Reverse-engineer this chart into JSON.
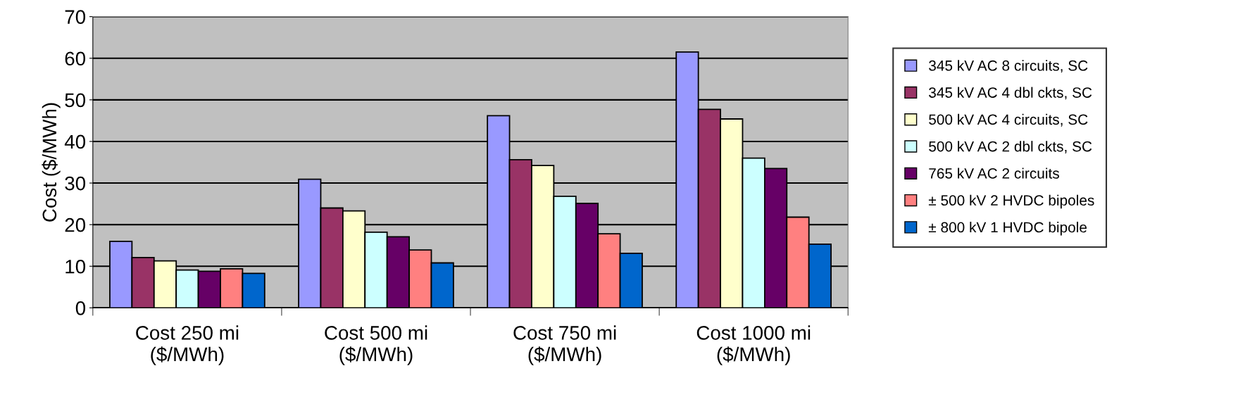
{
  "chart_data": {
    "type": "bar",
    "ylabel": "Cost ($/MWh)",
    "categories": [
      "Cost 250 mi\n($/MWh)",
      "Cost 500 mi\n($/MWh)",
      "Cost 750 mi\n($/MWh)",
      "Cost 1000 mi\n($/MWh)"
    ],
    "series": [
      {
        "name": "345 kV AC 8 circuits, SC",
        "color": "#9999ff",
        "values": [
          16.0,
          30.9,
          46.2,
          61.5
        ]
      },
      {
        "name": "345 kV AC 4 dbl ckts, SC",
        "color": "#993366",
        "values": [
          12.1,
          24.0,
          35.6,
          47.7
        ]
      },
      {
        "name": "500 kV AC 4 circuits, SC",
        "color": "#ffffcc",
        "values": [
          11.3,
          23.3,
          34.2,
          45.4
        ]
      },
      {
        "name": "500 kV AC 2 dbl ckts, SC",
        "color": "#ccffff",
        "values": [
          9.1,
          18.2,
          26.8,
          36.0
        ]
      },
      {
        "name": "765 kV AC 2 circuits",
        "color": "#660066",
        "values": [
          8.8,
          17.1,
          25.1,
          33.5
        ]
      },
      {
        "name": "± 500 kV 2 HVDC bipoles",
        "color": "#ff8080",
        "values": [
          9.4,
          13.9,
          17.8,
          21.8
        ]
      },
      {
        "name": "± 800 kV 1 HVDC bipole",
        "color": "#0066cc",
        "values": [
          8.3,
          10.8,
          13.1,
          15.3
        ]
      }
    ],
    "ylim": [
      0,
      70
    ],
    "yticks": [
      0,
      10,
      20,
      30,
      40,
      50,
      60,
      70
    ],
    "grid": "y",
    "legend": "right"
  }
}
